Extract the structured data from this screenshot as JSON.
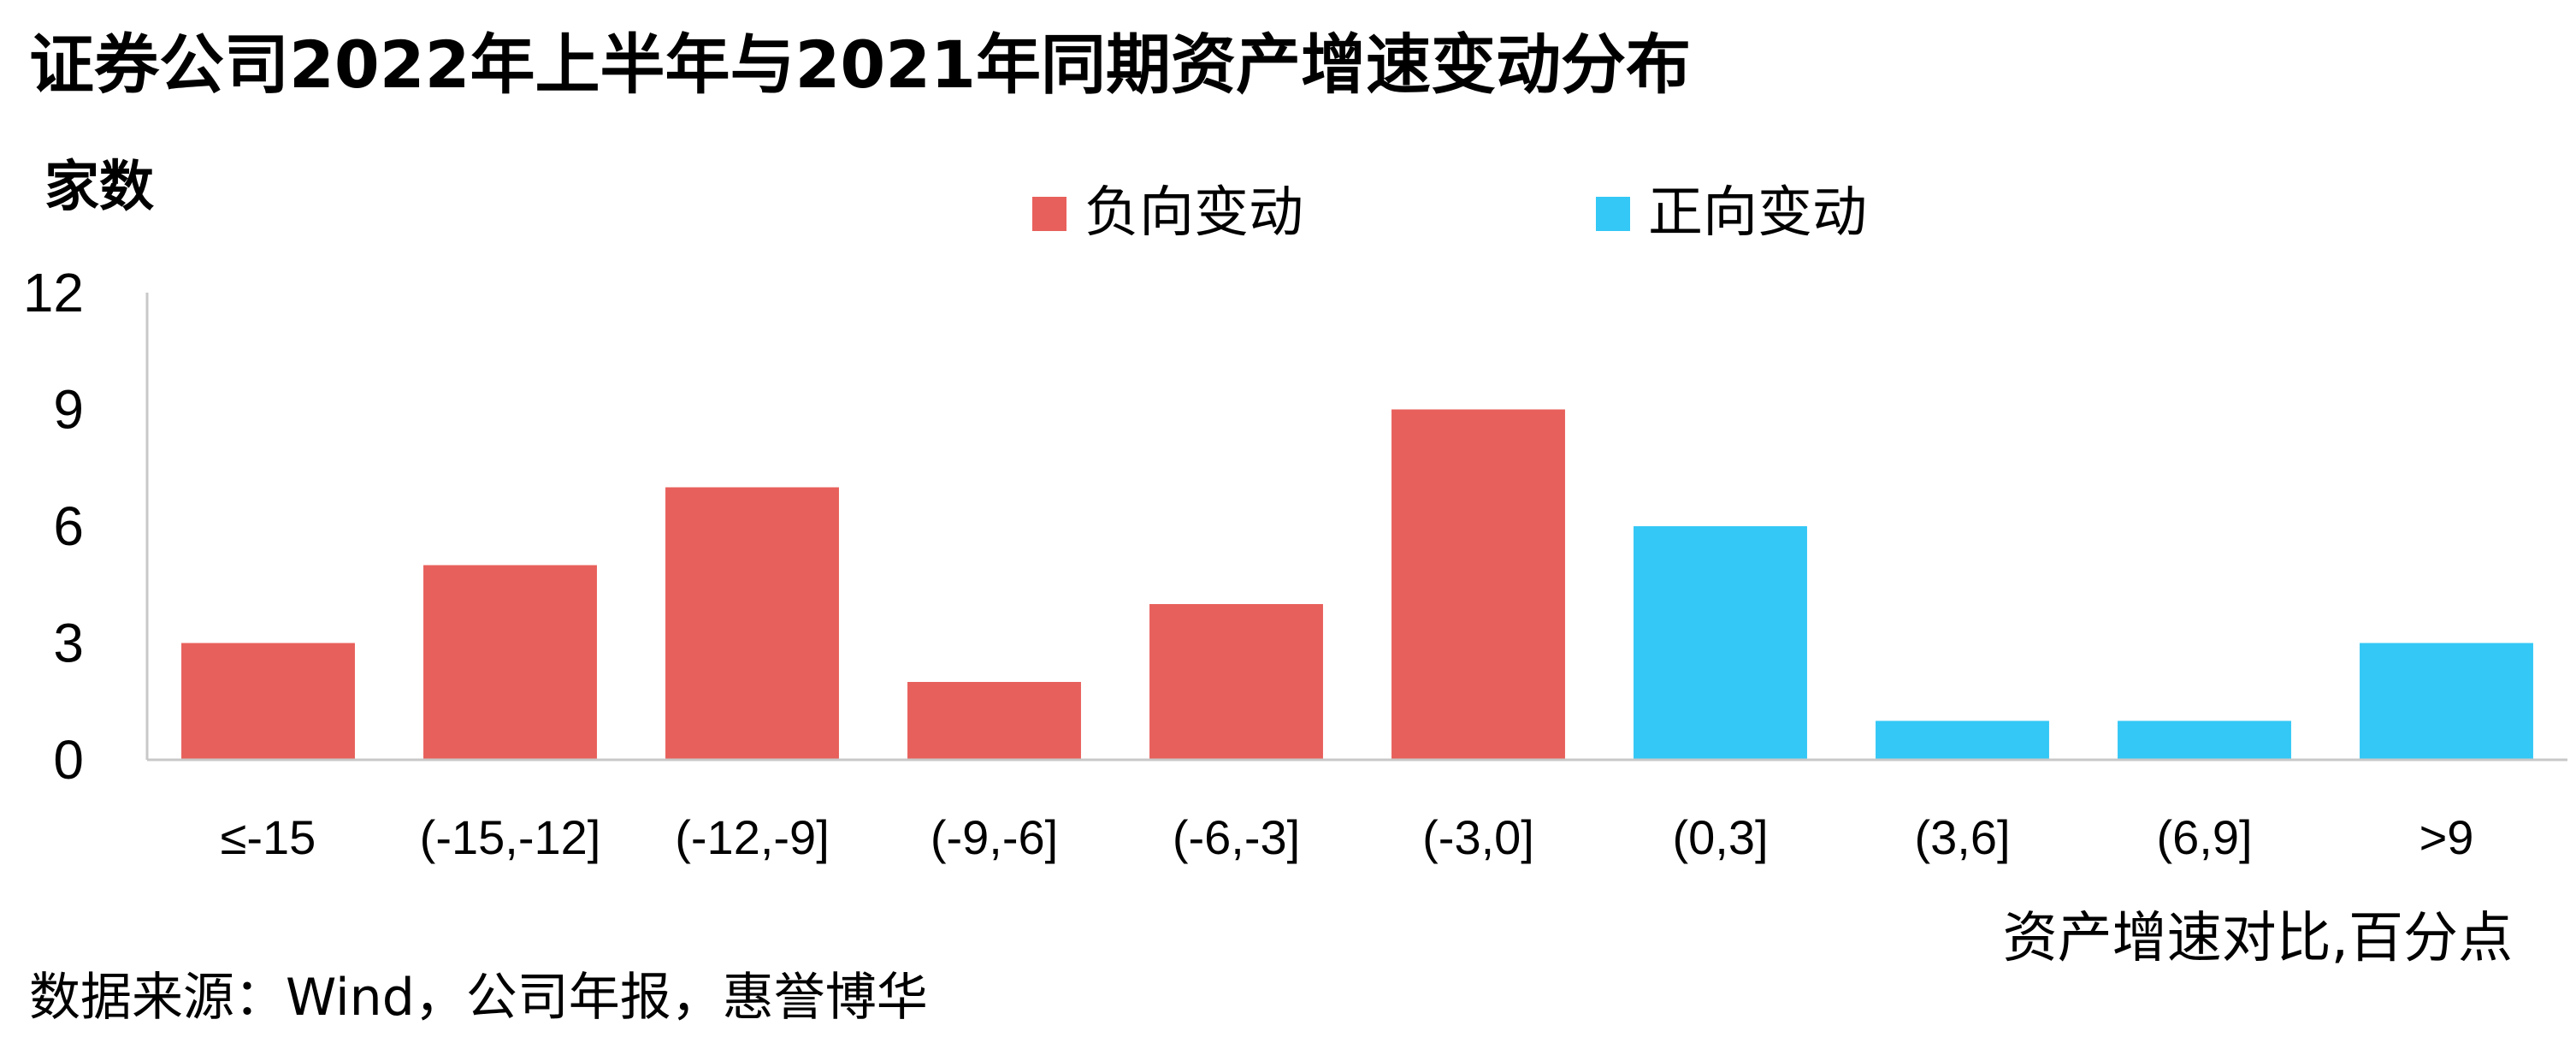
{
  "chart_data": {
    "type": "bar",
    "title": "证券公司2022年上半年与2021年同期资产增速变动分布",
    "ylabel": "家数",
    "xlabel": "资产增速对比,百分点",
    "source": "数据来源：Wind，公司年报，惠誉博华",
    "ylim": [
      0,
      12
    ],
    "yticks": [
      0,
      3,
      6,
      9,
      12
    ],
    "grid": false,
    "legend_position": "top-center",
    "categories": [
      "≤-15",
      "(-15,-12]",
      "(-12,-9]",
      "(-9,-6]",
      "(-6,-3]",
      "(-3,0]",
      "(0,3]",
      "(3,6]",
      "(6,9]",
      ">9"
    ],
    "series": [
      {
        "name": "负向变动",
        "color": "#E8605B",
        "values": [
          3,
          5,
          7,
          2,
          4,
          9,
          null,
          null,
          null,
          null
        ]
      },
      {
        "name": "正向变动",
        "color": "#33C8F6",
        "values": [
          null,
          null,
          null,
          null,
          null,
          null,
          6,
          1,
          1,
          3
        ]
      }
    ]
  }
}
